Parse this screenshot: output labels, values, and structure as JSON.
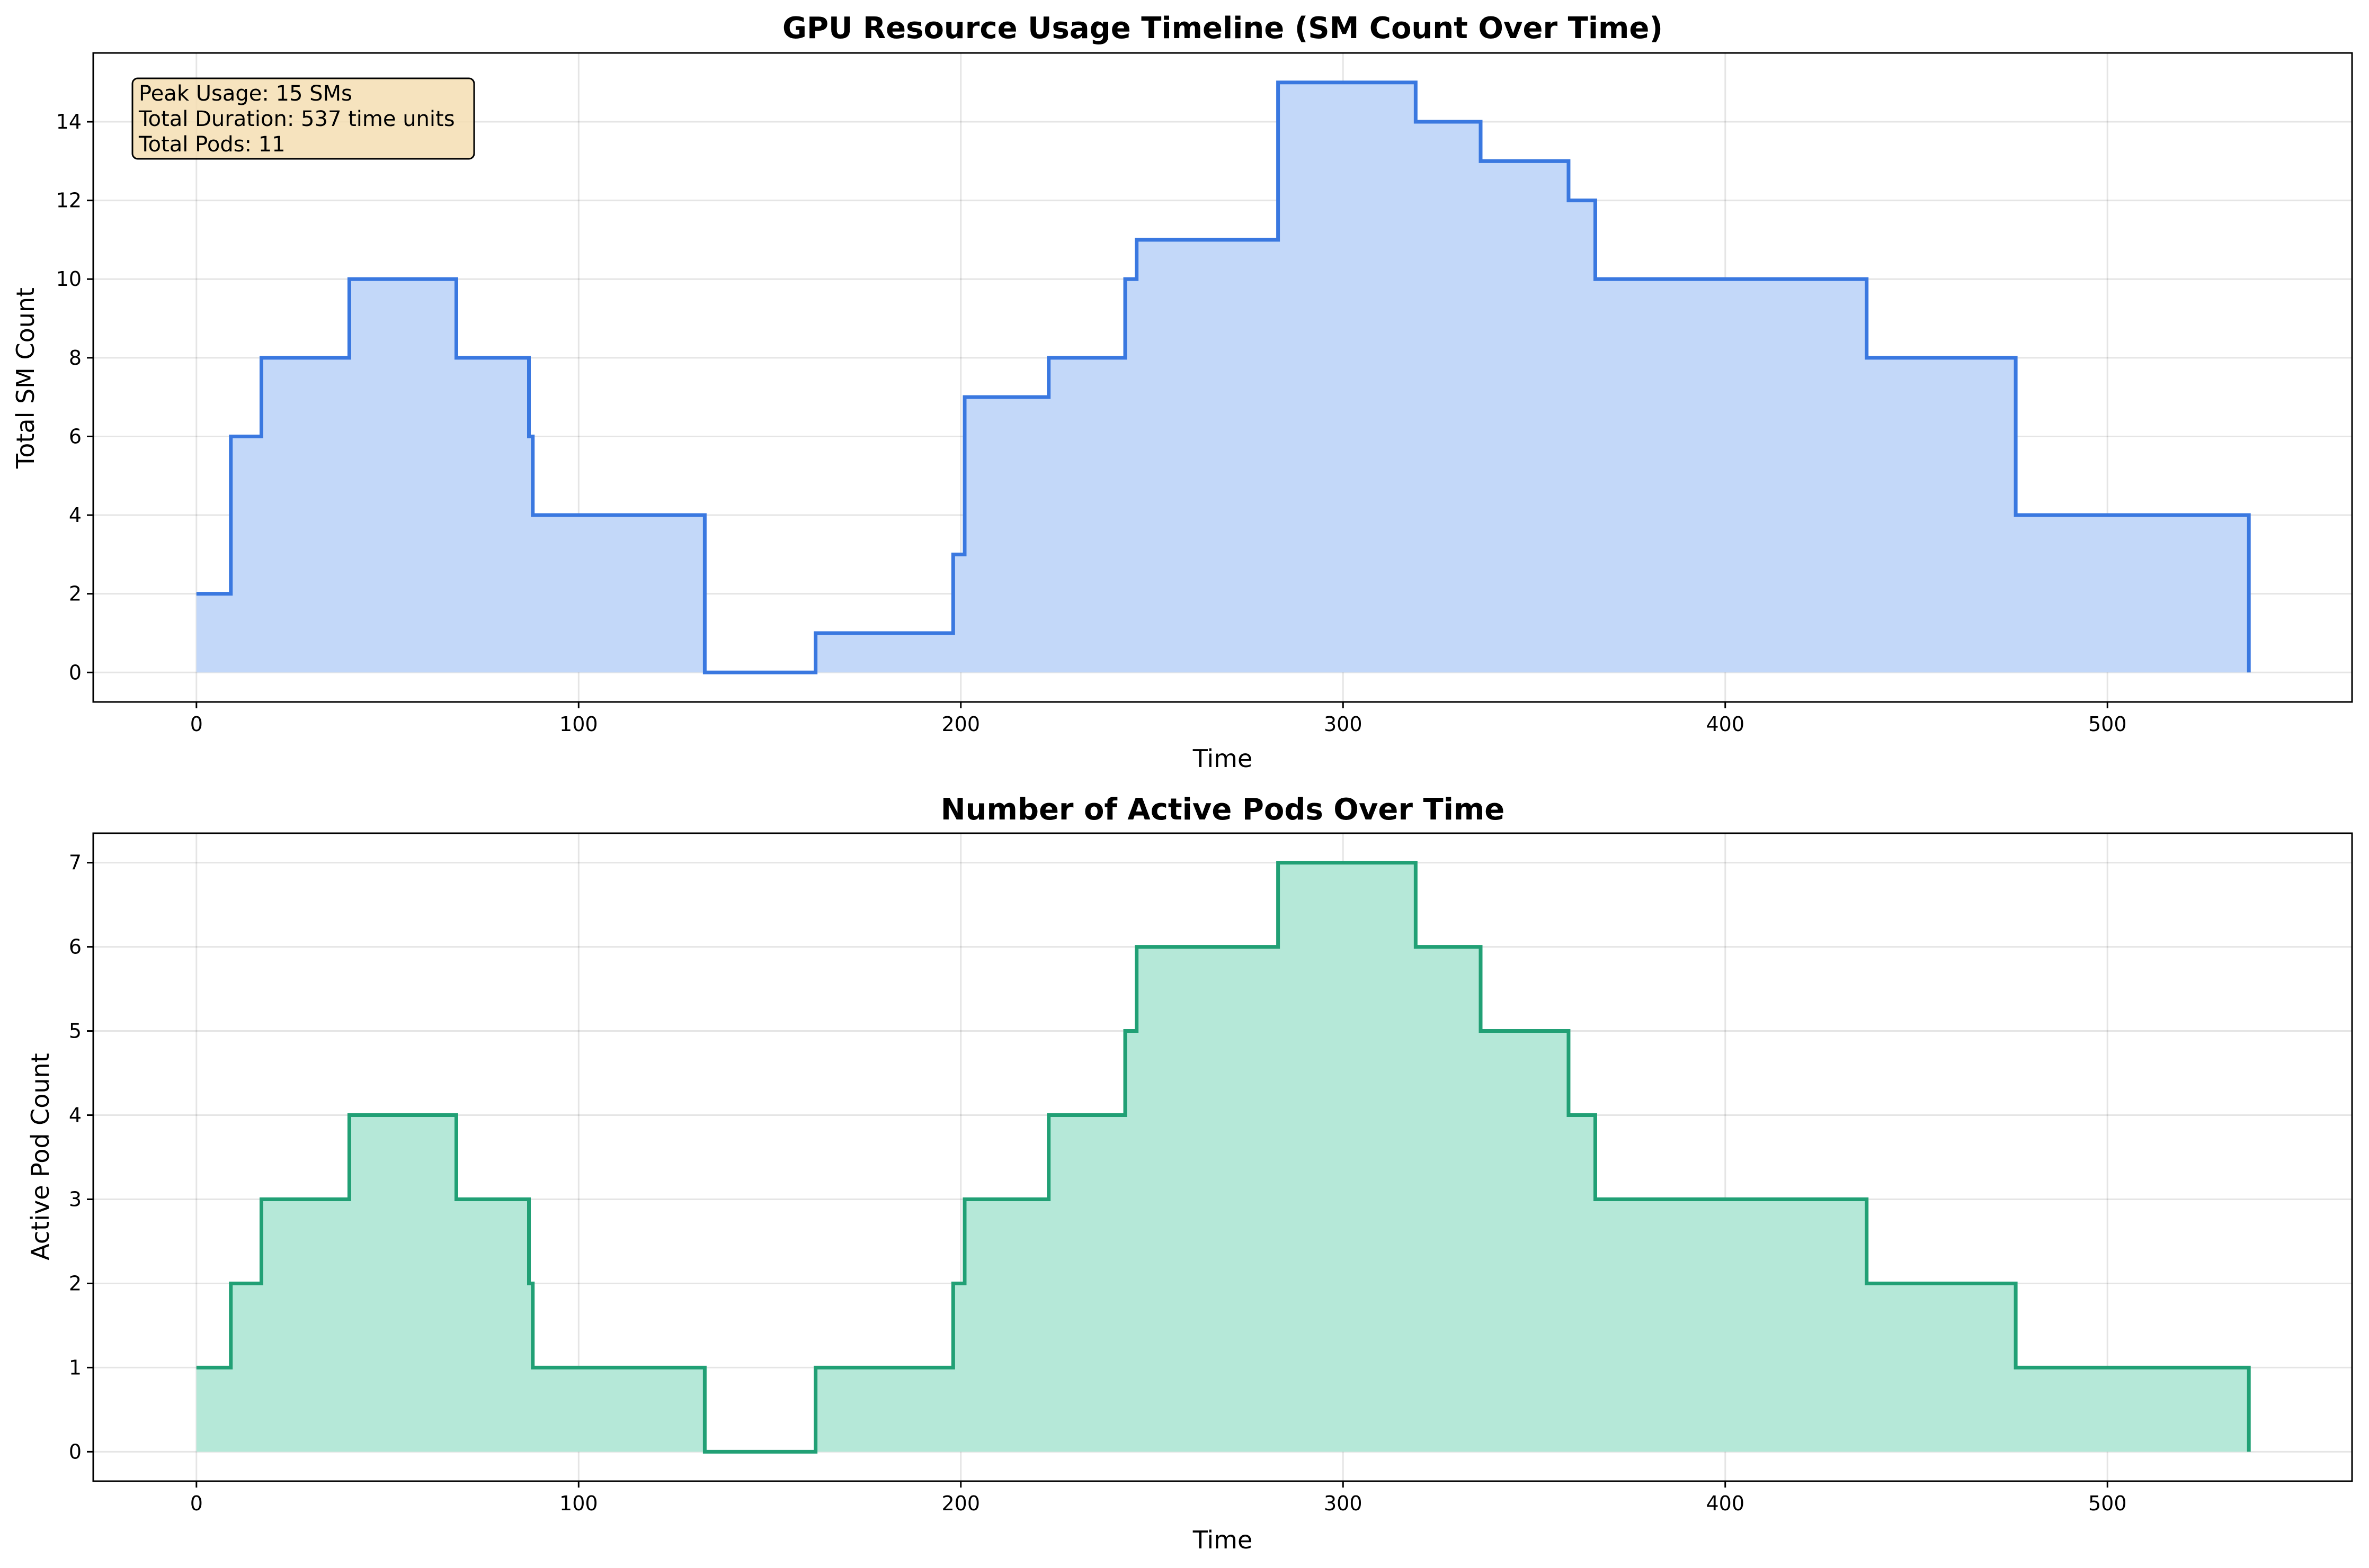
{
  "chart_data": [
    {
      "type": "line",
      "step": "post",
      "title": "GPU Resource Usage Timeline (SM Count Over Time)",
      "xlabel": "Time",
      "ylabel": "Total SM Count",
      "xlim": [
        -27,
        564
      ],
      "ylim": [
        -0.75,
        15.75
      ],
      "xticks": [
        0,
        100,
        200,
        300,
        400,
        500
      ],
      "yticks": [
        0,
        2,
        4,
        6,
        8,
        10,
        12,
        14
      ],
      "grid": true,
      "line_color": "#3a78e0",
      "fill_color": "#c3d8f9",
      "annotation": {
        "placement": "top-left",
        "lines": [
          "Peak Usage: 15 SMs",
          "Total Duration: 537 time units",
          "Total Pods: 11"
        ]
      },
      "x": [
        0,
        9,
        17,
        40,
        68,
        87,
        88,
        133,
        162,
        198,
        201,
        223,
        243,
        246,
        283,
        319,
        336,
        359,
        366,
        437,
        476,
        537,
        537
      ],
      "values": [
        2,
        6,
        8,
        10,
        8,
        6,
        4,
        0,
        1,
        3,
        7,
        8,
        10,
        11,
        15,
        14,
        13,
        12,
        10,
        8,
        4,
        4,
        0
      ]
    },
    {
      "type": "line",
      "step": "post",
      "title": "Number of Active Pods Over Time",
      "xlabel": "Time",
      "ylabel": "Active Pod Count",
      "xlim": [
        -27,
        564
      ],
      "ylim": [
        -0.35,
        7.35
      ],
      "xticks": [
        0,
        100,
        200,
        300,
        400,
        500
      ],
      "yticks": [
        0,
        1,
        2,
        3,
        4,
        5,
        6,
        7
      ],
      "grid": true,
      "line_color": "#21a075",
      "fill_color": "#b5e8d8",
      "x": [
        0,
        9,
        17,
        40,
        68,
        87,
        88,
        133,
        162,
        198,
        201,
        223,
        243,
        246,
        283,
        319,
        336,
        359,
        366,
        437,
        476,
        537,
        537
      ],
      "values": [
        1,
        2,
        3,
        4,
        3,
        2,
        1,
        0,
        1,
        2,
        3,
        4,
        5,
        6,
        7,
        6,
        5,
        4,
        3,
        2,
        1,
        1,
        0
      ]
    }
  ]
}
